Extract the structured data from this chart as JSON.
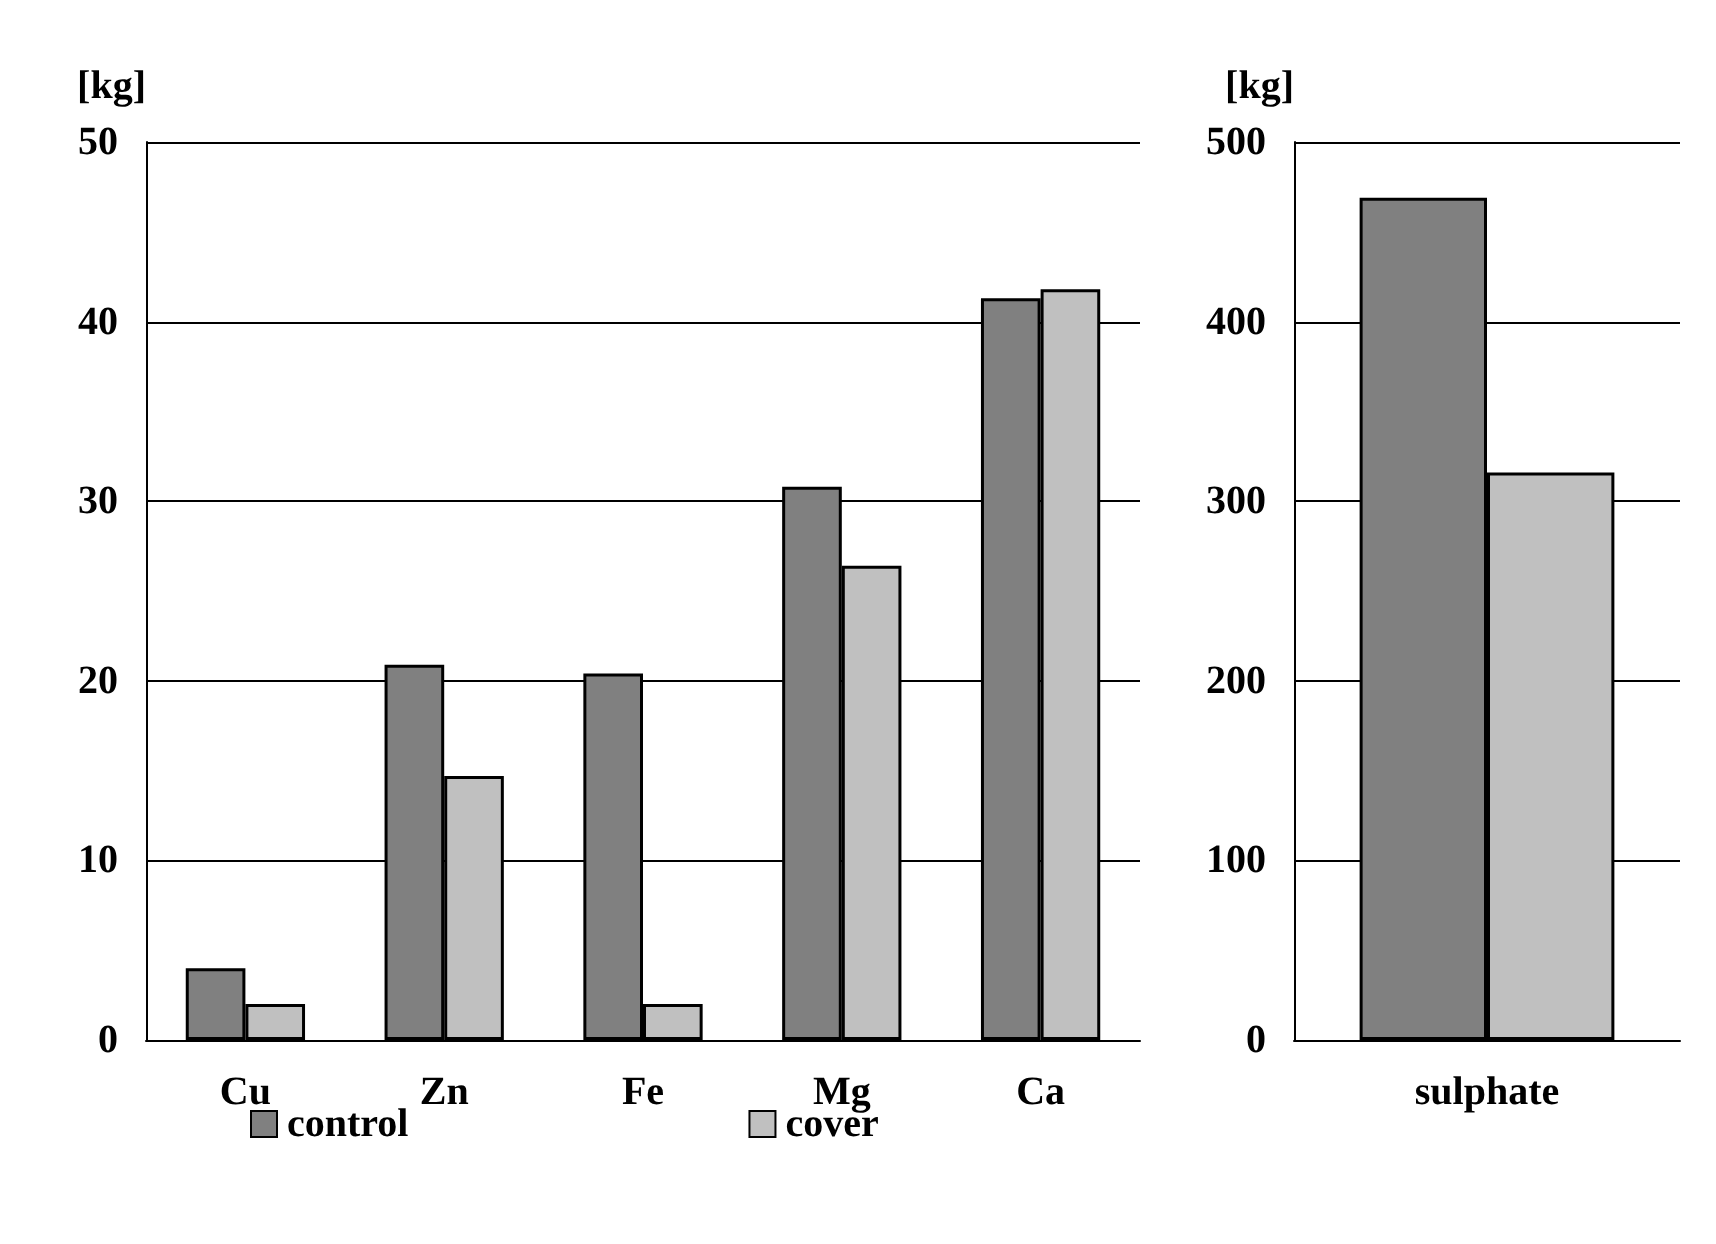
{
  "chart_data": [
    {
      "type": "bar",
      "ylabel": "[kg]",
      "categories": [
        "Cu",
        "Zn",
        "Fe",
        "Mg",
        "Ca"
      ],
      "series": [
        {
          "name": "control",
          "color": "#808080",
          "values": [
            4.0,
            20.9,
            20.4,
            30.8,
            41.3
          ]
        },
        {
          "name": "cover",
          "color": "#c0c0c0",
          "values": [
            2.0,
            14.7,
            2.0,
            26.4,
            41.8
          ]
        }
      ],
      "ylim": [
        0,
        50
      ],
      "yticks": [
        0,
        10,
        20,
        30,
        40,
        50
      ],
      "grid": "y",
      "legend": "bottom"
    },
    {
      "type": "bar",
      "ylabel": "[kg]",
      "categories": [
        "sulphate"
      ],
      "series": [
        {
          "color": "#808080",
          "values": [
            469
          ]
        },
        {
          "color": "#c0c0c0",
          "values": [
            316
          ]
        }
      ],
      "ylim": [
        0,
        500
      ],
      "yticks": [
        0,
        100,
        200,
        300,
        400,
        500
      ],
      "grid": "y"
    }
  ]
}
